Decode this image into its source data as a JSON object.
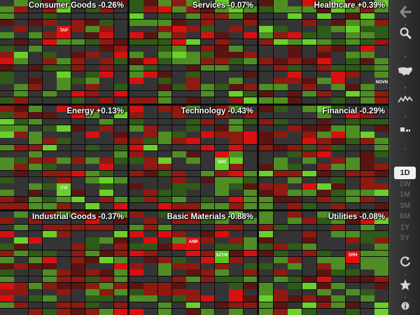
{
  "sectors": [
    {
      "id": "consumer-goods",
      "title": "Consumer Goods -0.26%"
    },
    {
      "id": "services",
      "title": "Services -0.07%"
    },
    {
      "id": "healthcare",
      "title": "Healthcare +0.39%"
    },
    {
      "id": "energy",
      "title": "Energy +0.13%"
    },
    {
      "id": "technology",
      "title": "Technology -0.43%"
    },
    {
      "id": "financial",
      "title": "Financial -0.29%"
    },
    {
      "id": "industrial-goods",
      "title": "Industrial Goods -0.37%"
    },
    {
      "id": "basic-materials",
      "title": "Basic Materials -0.88%"
    },
    {
      "id": "utilities",
      "title": "Utilities -0.08%"
    }
  ],
  "highlights": [
    {
      "sector": "consumer-goods",
      "ticker": "TAP",
      "color": "#e01010"
    },
    {
      "sector": "healthcare",
      "ticker": "NOVN",
      "color": "#3a3a3a"
    },
    {
      "sector": "energy",
      "ticker": "CVI",
      "color": "#6ad02a"
    },
    {
      "sector": "technology",
      "ticker": "SED",
      "color": "#6ad02a"
    },
    {
      "sector": "basic-materials",
      "ticker": "ANR",
      "color": "#e01010"
    },
    {
      "sector": "basic-materials",
      "ticker": "SZYM",
      "color": "#5cc020"
    },
    {
      "sector": "utilities",
      "ticker": "SRH",
      "color": "#e01010"
    }
  ],
  "sidebar": {
    "back_icon": "back-arrow-icon",
    "search_icon": "search-icon",
    "map_icon": "usa-map-icon",
    "chart_icon": "line-chart-icon",
    "bars_icon": "bars-icon",
    "ranges": [
      "1D",
      "1W",
      "1M",
      "3M",
      "6M",
      "1Y",
      "5Y"
    ],
    "active_range": "1D",
    "refresh_icon": "refresh-icon",
    "star_icon": "star-icon",
    "info_icon": "info-icon"
  },
  "colors": {
    "strong_red": "#d81010",
    "red": "#8e1a12",
    "dark_red": "#5a1512",
    "gray": "#343434",
    "dark_green": "#2f5a18",
    "green": "#4e8e24",
    "strong_green": "#6ad02a"
  }
}
